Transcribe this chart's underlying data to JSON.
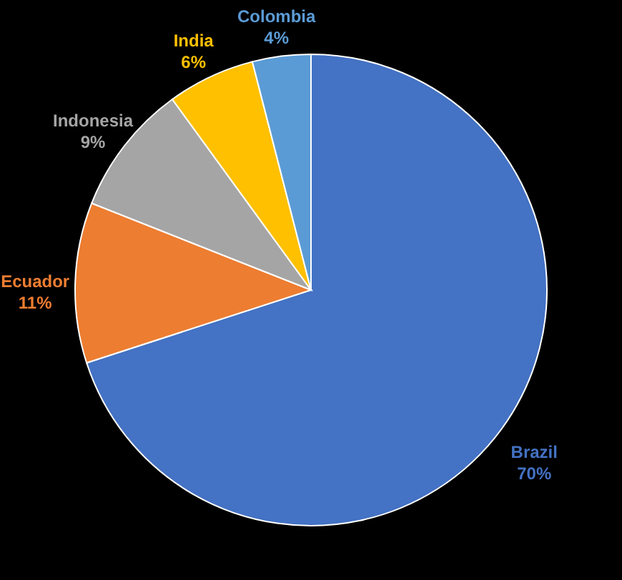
{
  "chart_data": {
    "type": "pie",
    "categories": [
      "Brazil",
      "Ecuador",
      "Indonesia",
      "India",
      "Colombia"
    ],
    "values": [
      70,
      11,
      9,
      6,
      4
    ],
    "value_labels": [
      "70%",
      "11%",
      "9%",
      "6%",
      "4%"
    ],
    "colors": [
      "#4472c4",
      "#ed7d31",
      "#a5a5a5",
      "#ffc000",
      "#5b9bd5"
    ]
  }
}
